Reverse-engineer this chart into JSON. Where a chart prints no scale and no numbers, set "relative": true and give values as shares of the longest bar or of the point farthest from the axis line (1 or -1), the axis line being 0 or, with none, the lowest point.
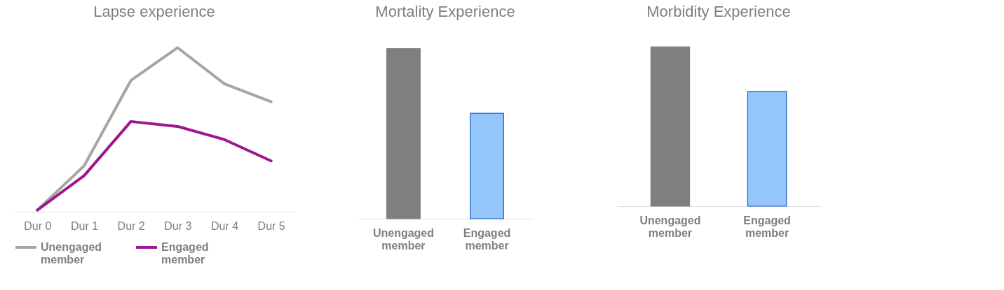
{
  "chart_data": [
    {
      "type": "line",
      "title": "Lapse experience",
      "categories": [
        "Dur 0",
        "Dur 1",
        "Dur 2",
        "Dur 3",
        "Dur 4",
        "Dur 5"
      ],
      "relative": true,
      "legend": "bottom",
      "grid": false,
      "series": [
        {
          "name": "Unengaged member",
          "color": "#a6a6a6",
          "values": [
            0.01,
            0.28,
            0.8,
            1,
            0.78,
            0.67
          ]
        },
        {
          "name": "Engaged member",
          "color": "#a0168f",
          "values": [
            0.01,
            0.22,
            0.55,
            0.52,
            0.44,
            0.31
          ]
        }
      ]
    },
    {
      "type": "bar",
      "title": "Mortality Experience",
      "categories": [
        "Unengaged member",
        "Engaged member"
      ],
      "relative": true,
      "values": [
        1,
        0.62
      ],
      "colors": [
        "#7f7f7f",
        "#94c6fb"
      ]
    },
    {
      "type": "bar",
      "title": "Morbidity Experience",
      "categories": [
        "Unengaged member",
        "Engaged member"
      ],
      "relative": true,
      "values": [
        1,
        0.72
      ],
      "colors": [
        "#7f7f7f",
        "#94c6fb"
      ]
    }
  ]
}
